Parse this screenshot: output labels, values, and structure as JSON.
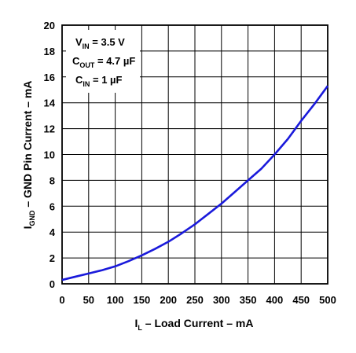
{
  "chart_data": {
    "type": "line",
    "xlabel": {
      "main": "I",
      "sub": "L",
      "rest": " – Load Current – mA"
    },
    "ylabel": {
      "main": "I",
      "sub": "GND",
      "rest": " – GND Pin Current – mA"
    },
    "xlim": [
      0,
      500
    ],
    "ylim": [
      0,
      20
    ],
    "x_ticks": [
      "0",
      "50",
      "100",
      "150",
      "200",
      "250",
      "300",
      "350",
      "400",
      "450",
      "500"
    ],
    "y_ticks": [
      "0",
      "2",
      "4",
      "6",
      "8",
      "10",
      "12",
      "14",
      "16",
      "18",
      "20"
    ],
    "grid": true,
    "line_color": "#1a1adb",
    "annotations": [
      {
        "main": "V",
        "sub": "IN",
        "rest": " =  3.5 V"
      },
      {
        "main": "C",
        "sub": "OUT",
        "rest": " = 4.7 µF"
      },
      {
        "main": "C",
        "sub": "IN",
        "rest": " = 1 µF"
      }
    ],
    "series": [
      {
        "x": [
          0,
          25,
          50,
          75,
          100,
          125,
          150,
          175,
          200,
          225,
          250,
          275,
          300,
          325,
          350,
          375,
          400,
          425,
          450,
          475,
          500
        ],
        "y": [
          0.3,
          0.55,
          0.8,
          1.05,
          1.35,
          1.75,
          2.2,
          2.7,
          3.25,
          3.9,
          4.6,
          5.4,
          6.2,
          7.1,
          8.0,
          8.9,
          10.0,
          11.2,
          12.6,
          13.9,
          15.3
        ]
      }
    ]
  }
}
